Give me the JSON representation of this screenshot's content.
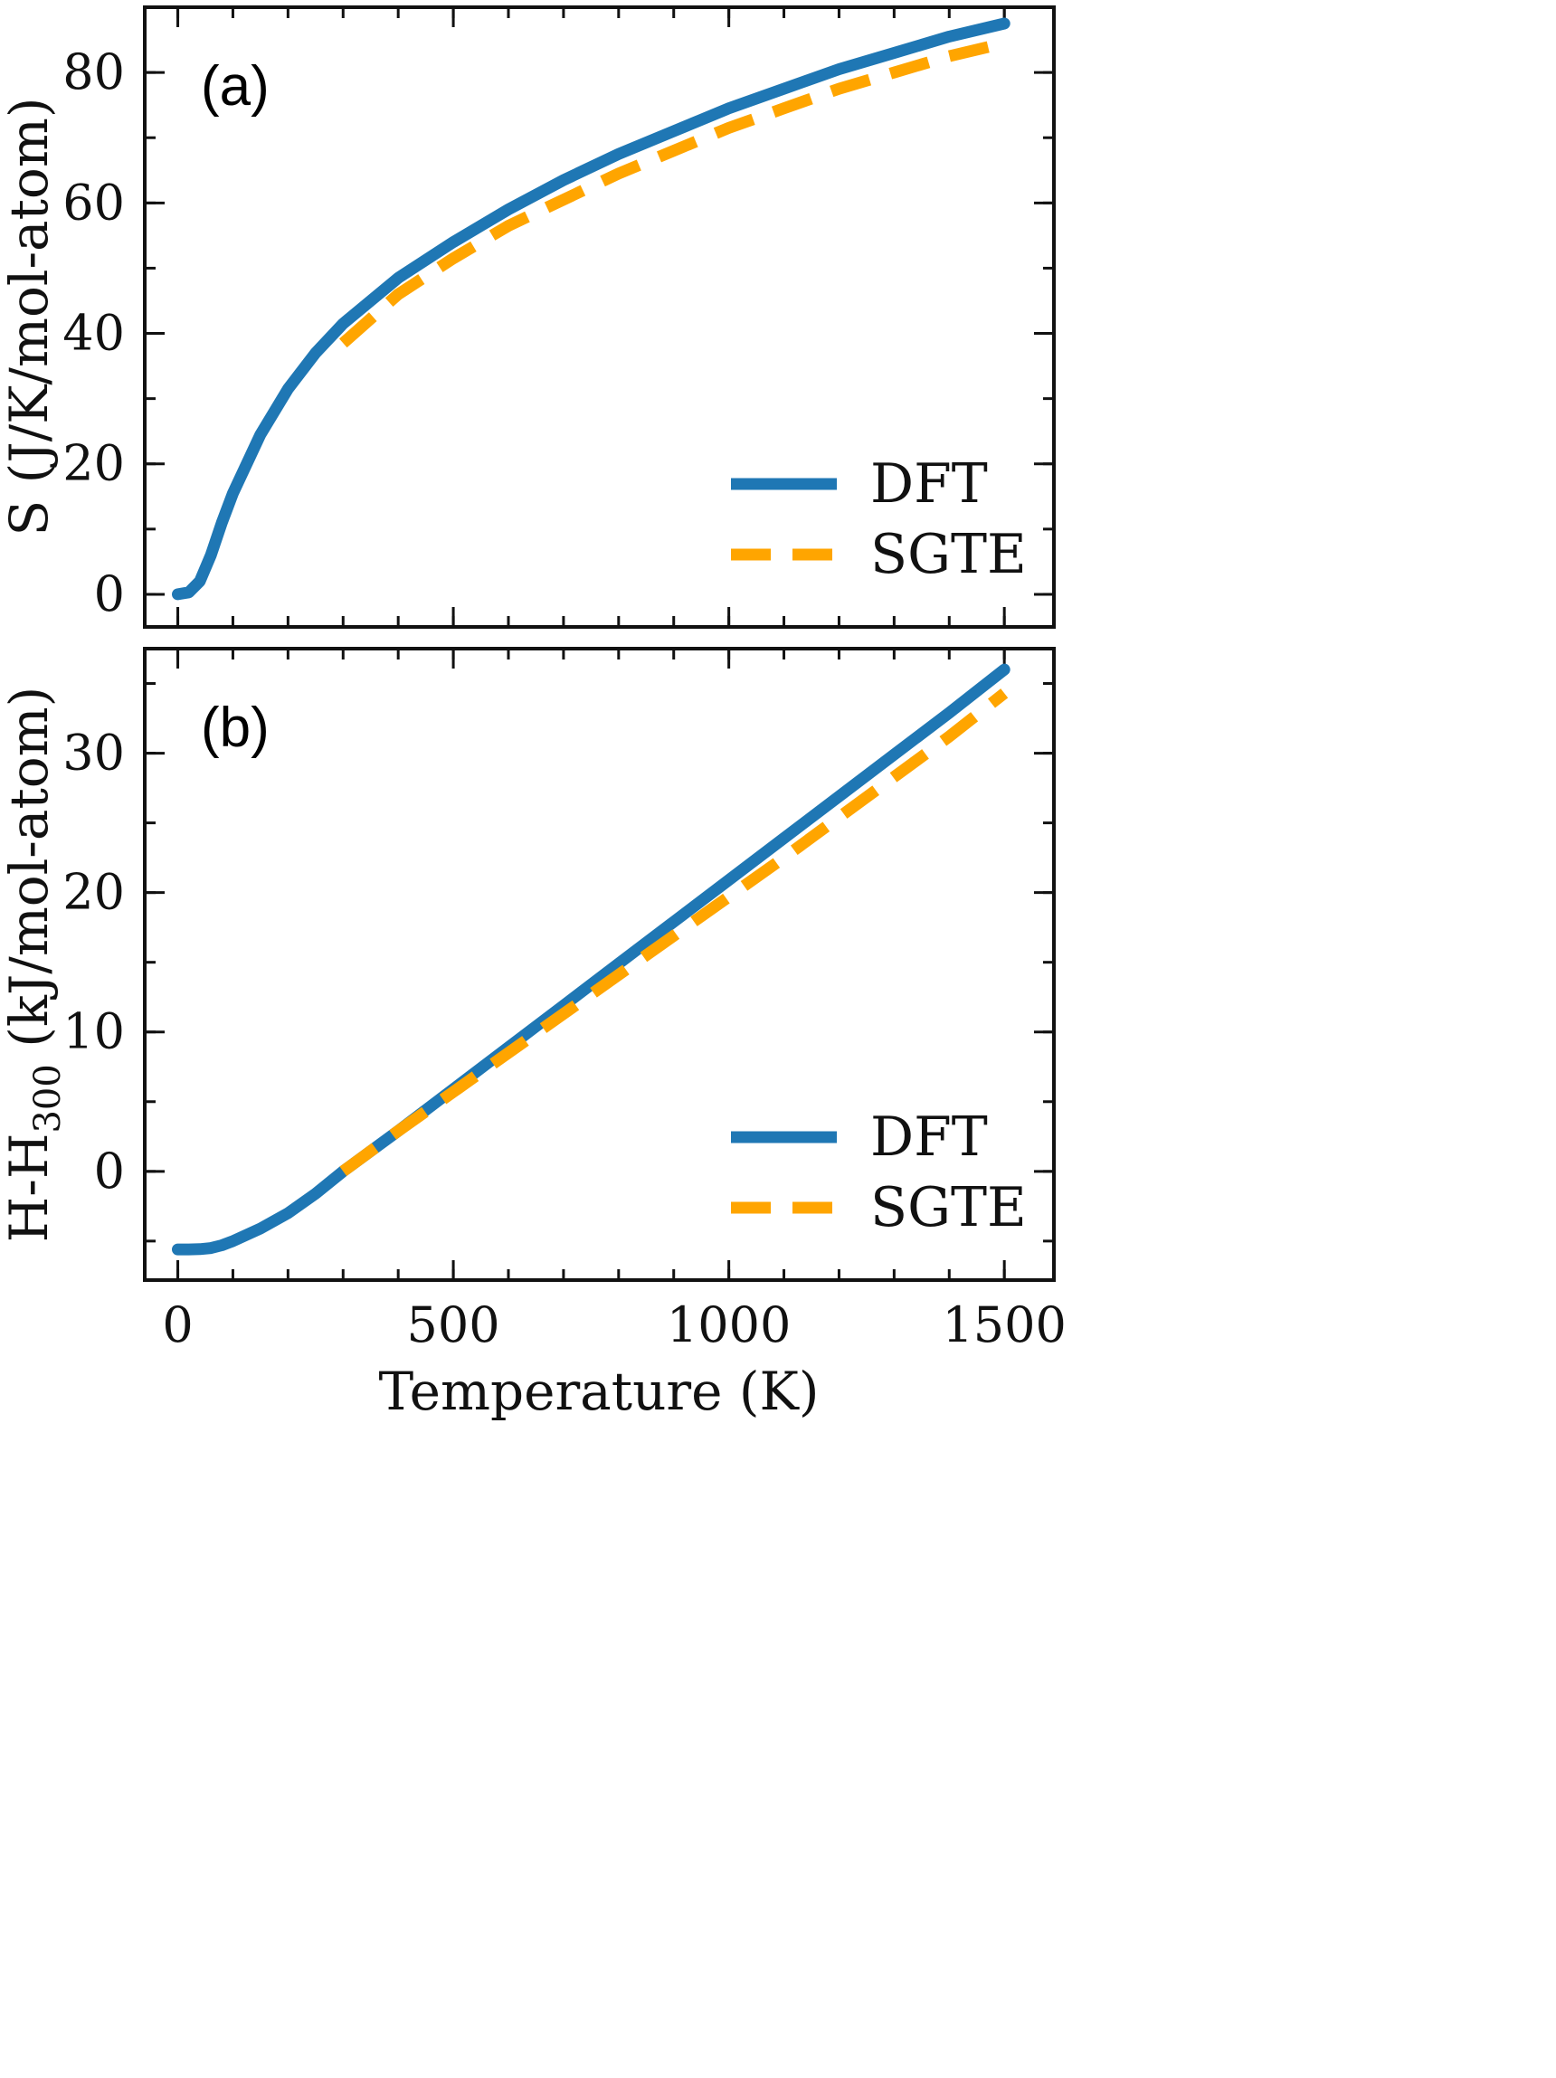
{
  "chart_data": [
    {
      "type": "line",
      "panel_label": "(a)",
      "xlabel": "",
      "ylabel": "S (J/K/mol-atom)",
      "xlim": [
        -60,
        1590
      ],
      "ylim": [
        -5,
        90
      ],
      "x_ticks": [
        0,
        500,
        1000,
        1500
      ],
      "x_minor_step": 100,
      "y_ticks": [
        0,
        20,
        40,
        60,
        80
      ],
      "y_minor_step": 10,
      "show_x_tick_labels": false,
      "grid": false,
      "legend_position": "bottom-right",
      "series": [
        {
          "name": "DFT",
          "color": "#1f77b4",
          "style": "solid",
          "x": [
            0,
            20,
            40,
            60,
            80,
            100,
            150,
            200,
            250,
            300,
            400,
            500,
            600,
            700,
            800,
            900,
            1000,
            1100,
            1200,
            1300,
            1400,
            1500
          ],
          "y": [
            0,
            0.3,
            2,
            6,
            11,
            15.5,
            24.5,
            31.5,
            37,
            41.5,
            48.5,
            54,
            59,
            63.5,
            67.5,
            71,
            74.5,
            77.5,
            80.5,
            83,
            85.5,
            87.5
          ]
        },
        {
          "name": "SGTE",
          "color": "#ffa500",
          "style": "dashed",
          "x": [
            300,
            400,
            500,
            600,
            700,
            800,
            900,
            1000,
            1100,
            1200,
            1300,
            1400,
            1500
          ],
          "y": [
            38.5,
            46,
            51.5,
            56.5,
            60.5,
            64.5,
            68,
            71.5,
            74.5,
            77.5,
            80,
            82.5,
            84.5
          ]
        }
      ]
    },
    {
      "type": "line",
      "panel_label": "(b)",
      "xlabel": "Temperature (K)",
      "ylabel": "H-H",
      "ylabel_subscript": "300",
      "ylabel_suffix": " (kJ/mol-atom)",
      "xlim": [
        -60,
        1590
      ],
      "ylim": [
        -7.8,
        37.5
      ],
      "x_ticks": [
        0,
        500,
        1000,
        1500
      ],
      "x_minor_step": 100,
      "y_ticks": [
        0,
        10,
        20,
        30
      ],
      "y_minor_step": 5,
      "show_x_tick_labels": true,
      "grid": false,
      "legend_position": "bottom-right",
      "series": [
        {
          "name": "DFT",
          "color": "#1f77b4",
          "style": "solid",
          "x": [
            0,
            20,
            40,
            60,
            80,
            100,
            150,
            200,
            250,
            300,
            400,
            500,
            600,
            700,
            800,
            900,
            1000,
            1100,
            1200,
            1300,
            1400,
            1500
          ],
          "y": [
            -5.6,
            -5.6,
            -5.58,
            -5.5,
            -5.3,
            -5.0,
            -4.1,
            -3.0,
            -1.6,
            0,
            2.9,
            5.9,
            8.9,
            11.9,
            14.9,
            17.9,
            20.9,
            23.9,
            26.9,
            29.9,
            32.9,
            36.0
          ]
        },
        {
          "name": "SGTE",
          "color": "#ffa500",
          "style": "dashed",
          "x": [
            300,
            400,
            500,
            600,
            700,
            800,
            900,
            1000,
            1100,
            1200,
            1300,
            1400,
            1500
          ],
          "y": [
            0,
            2.9,
            5.7,
            8.5,
            11.3,
            14.1,
            16.9,
            19.7,
            22.5,
            25.4,
            28.3,
            31.2,
            34.3
          ]
        }
      ]
    }
  ]
}
